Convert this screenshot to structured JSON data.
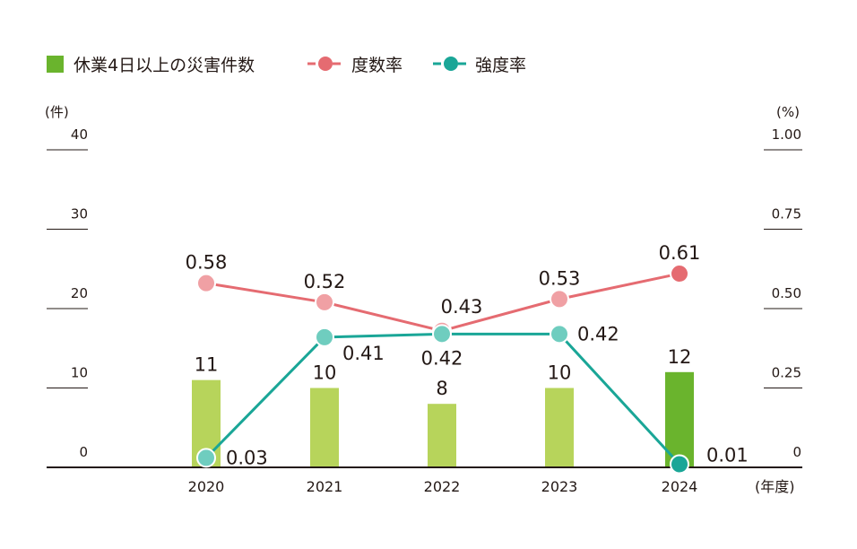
{
  "chart_data": {
    "type": "bar",
    "categories": [
      "2020",
      "2021",
      "2022",
      "2023",
      "2024"
    ],
    "x_unit": "(年度)",
    "legend": [
      {
        "name": "休業4日以上の災害件数",
        "kind": "bar",
        "color": "#6ab42d"
      },
      {
        "name": "度数率",
        "kind": "line",
        "color": "#e56b71"
      },
      {
        "name": "強度率",
        "kind": "line",
        "color": "#1aa697"
      }
    ],
    "left_axis": {
      "unit": "(件)",
      "ticks": [
        "0",
        "10",
        "20",
        "30",
        "40"
      ],
      "range": [
        0,
        40
      ]
    },
    "right_axis": {
      "unit": "(%)",
      "ticks": [
        "0",
        "0.25",
        "0.50",
        "0.75",
        "1.00"
      ],
      "range": [
        0,
        1.0
      ]
    },
    "series": [
      {
        "name": "休業4日以上の災害件数",
        "type": "bar",
        "axis": "left",
        "values": [
          11,
          10,
          8,
          10,
          12
        ],
        "labels": [
          "11",
          "10",
          "8",
          "10",
          "12"
        ],
        "color": "#b7d45b",
        "highlight_color": "#6ab42d"
      },
      {
        "name": "度数率",
        "type": "line",
        "axis": "right",
        "values": [
          0.58,
          0.52,
          0.43,
          0.53,
          0.61
        ],
        "labels": [
          "0.58",
          "0.52",
          "0.43",
          "0.53",
          "0.61"
        ],
        "color": "#e56b71",
        "marker_color": "#f0a0a4",
        "highlight_color": "#e56b71"
      },
      {
        "name": "強度率",
        "type": "line",
        "axis": "right",
        "values": [
          0.03,
          0.41,
          0.42,
          0.42,
          0.01
        ],
        "labels": [
          "0.03",
          "0.41",
          "0.42",
          "0.42",
          "0.01"
        ],
        "color": "#1aa697",
        "marker_color": "#6fcdbf",
        "highlight_color": "#1aa697"
      }
    ]
  }
}
